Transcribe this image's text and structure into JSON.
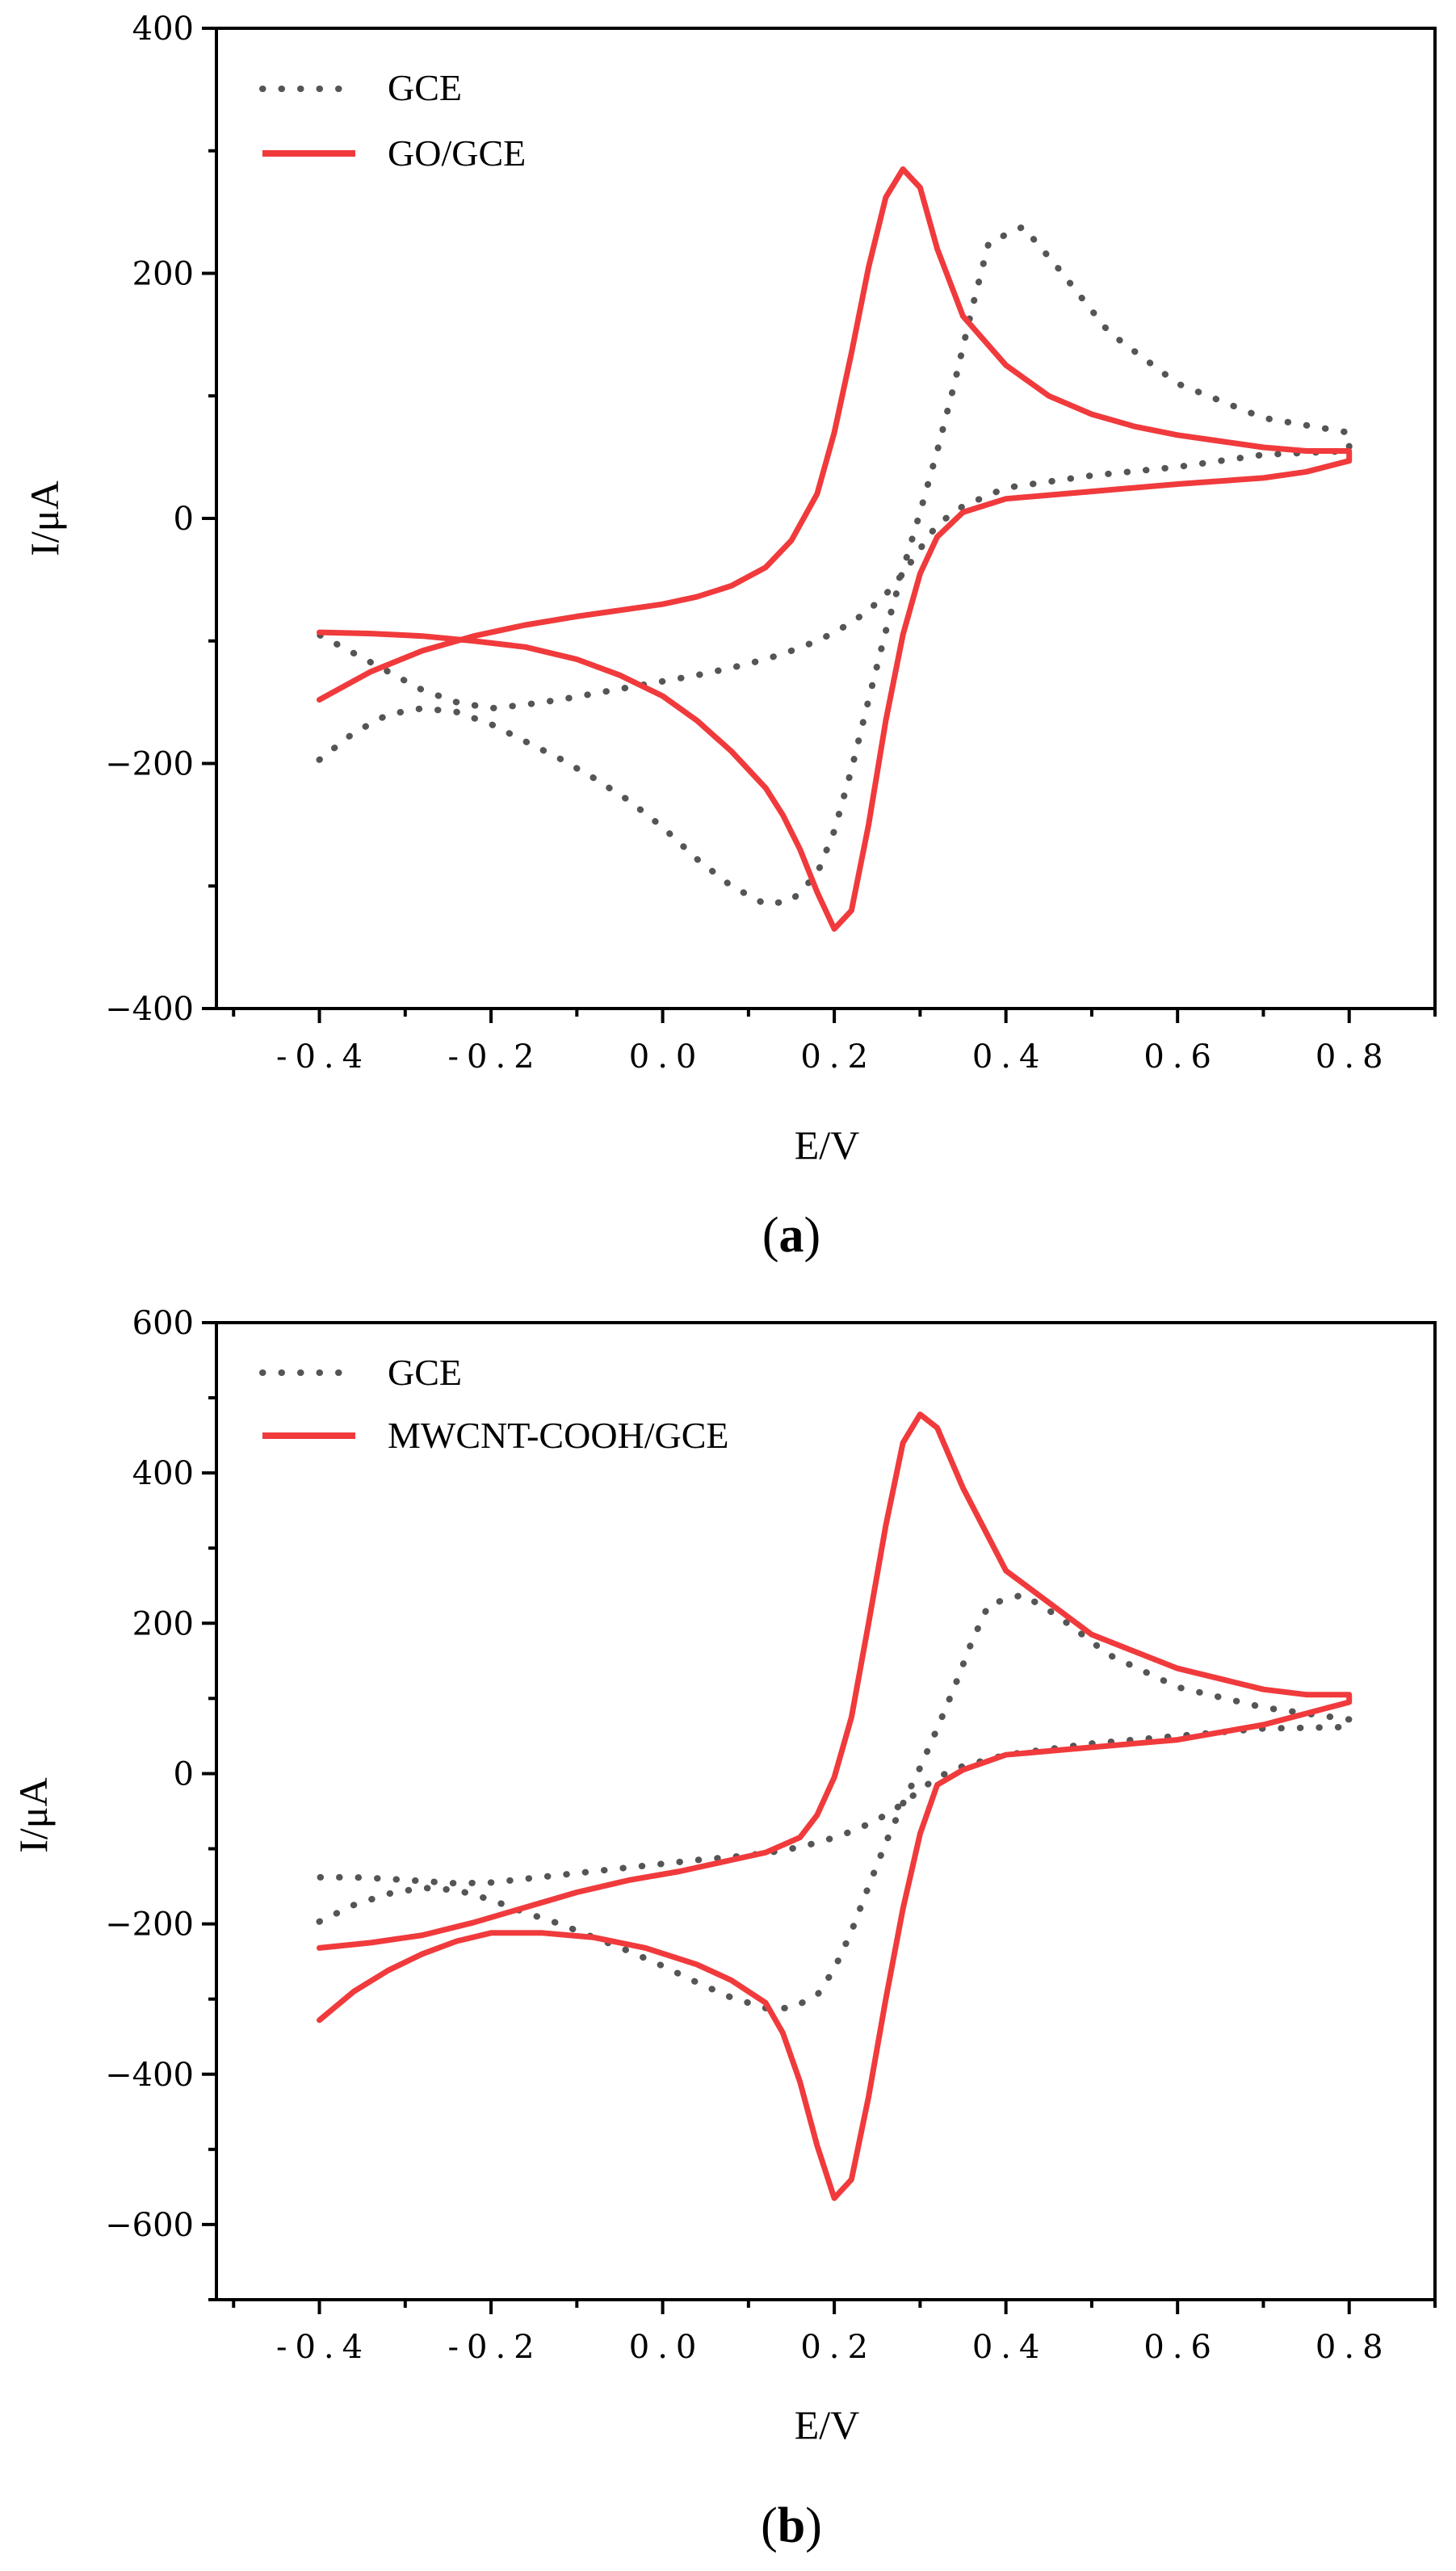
{
  "chart_data": [
    {
      "type": "line",
      "panel_label": "a",
      "title": "",
      "xlabel": "E/V",
      "ylabel": "I/μA",
      "xlim": [
        -0.52,
        0.9
      ],
      "ylim": [
        -400,
        400
      ],
      "xticks": [
        -0.4,
        -0.2,
        0.0,
        0.2,
        0.4,
        0.6,
        0.8
      ],
      "xtick_labels": [
        "-0.4",
        "-0.2",
        "0.0",
        "0.2",
        "0.4",
        "0.6",
        "0.8"
      ],
      "yticks": [
        -400,
        -200,
        0,
        200,
        400
      ],
      "ytick_labels": [
        "−400",
        "−200",
        "0",
        "200",
        "400"
      ],
      "legend_position": "top-left",
      "series": [
        {
          "name": "GCE",
          "color": "#555555",
          "style": "dotted",
          "x": [
            -0.4,
            -0.36,
            -0.32,
            -0.28,
            -0.24,
            -0.2,
            -0.16,
            -0.12,
            -0.08,
            -0.04,
            0.0,
            0.04,
            0.08,
            0.12,
            0.15,
            0.18,
            0.2,
            0.22,
            0.24,
            0.26,
            0.28,
            0.3,
            0.32,
            0.34,
            0.36,
            0.38,
            0.42,
            0.46,
            0.52,
            0.6,
            0.7,
            0.8,
            0.8,
            0.7,
            0.6,
            0.5,
            0.4,
            0.35,
            0.32,
            0.3,
            0.28,
            0.26,
            0.24,
            0.22,
            0.2,
            0.18,
            0.15,
            0.12,
            0.08,
            0.04,
            0.0,
            -0.04,
            -0.08,
            -0.12,
            -0.16,
            -0.2,
            -0.24,
            -0.28,
            -0.32,
            -0.36,
            -0.4
          ],
          "y": [
            -197,
            -175,
            -160,
            -155,
            -158,
            -168,
            -182,
            -196,
            -212,
            -230,
            -252,
            -278,
            -300,
            -315,
            -312,
            -290,
            -255,
            -205,
            -148,
            -92,
            -42,
            5,
            55,
            110,
            170,
            225,
            238,
            205,
            152,
            110,
            82,
            70,
            55,
            52,
            42,
            35,
            25,
            10,
            -5,
            -25,
            -45,
            -62,
            -75,
            -85,
            -93,
            -100,
            -108,
            -115,
            -122,
            -128,
            -133,
            -138,
            -143,
            -148,
            -152,
            -155,
            -150,
            -140,
            -125,
            -110,
            -95
          ]
        },
        {
          "name": "GO/GCE",
          "color": "#F03A3C",
          "style": "solid",
          "x": [
            -0.4,
            -0.34,
            -0.28,
            -0.22,
            -0.16,
            -0.1,
            -0.05,
            0.0,
            0.04,
            0.08,
            0.12,
            0.15,
            0.18,
            0.2,
            0.22,
            0.24,
            0.26,
            0.28,
            0.3,
            0.32,
            0.35,
            0.4,
            0.45,
            0.5,
            0.55,
            0.6,
            0.65,
            0.7,
            0.75,
            0.8,
            0.8,
            0.75,
            0.7,
            0.6,
            0.5,
            0.4,
            0.35,
            0.32,
            0.3,
            0.28,
            0.26,
            0.24,
            0.22,
            0.2,
            0.18,
            0.16,
            0.14,
            0.12,
            0.08,
            0.04,
            0.0,
            -0.05,
            -0.1,
            -0.16,
            -0.22,
            -0.28,
            -0.34,
            -0.4
          ],
          "y": [
            -148,
            -125,
            -108,
            -96,
            -87,
            -80,
            -75,
            -70,
            -64,
            -55,
            -40,
            -18,
            20,
            70,
            135,
            205,
            262,
            285,
            270,
            220,
            165,
            125,
            100,
            85,
            75,
            68,
            63,
            58,
            55,
            55,
            47,
            38,
            33,
            28,
            22,
            16,
            5,
            -15,
            -45,
            -95,
            -165,
            -250,
            -320,
            -335,
            -305,
            -270,
            -242,
            -220,
            -190,
            -165,
            -145,
            -128,
            -115,
            -105,
            -100,
            -96,
            -94,
            -93
          ]
        }
      ]
    },
    {
      "type": "line",
      "panel_label": "b",
      "title": "",
      "xlabel": "E/V",
      "ylabel": "I/μA",
      "xlim": [
        -0.52,
        0.9
      ],
      "ylim": [
        -700,
        600
      ],
      "xticks": [
        -0.4,
        -0.2,
        0.0,
        0.2,
        0.4,
        0.6,
        0.8
      ],
      "xtick_labels": [
        "-0.4",
        "-0.2",
        "0.0",
        "0.2",
        "0.4",
        "0.6",
        "0.8"
      ],
      "yticks": [
        -600,
        -400,
        -200,
        0,
        200,
        400,
        600
      ],
      "ytick_labels": [
        "−600",
        "−400",
        "−200",
        "0",
        "200",
        "400",
        "600"
      ],
      "legend_position": "top-left",
      "series": [
        {
          "name": "GCE",
          "color": "#555555",
          "style": "dotted",
          "x": [
            -0.4,
            -0.36,
            -0.32,
            -0.28,
            -0.24,
            -0.2,
            -0.16,
            -0.12,
            -0.08,
            -0.04,
            0.0,
            0.04,
            0.08,
            0.12,
            0.15,
            0.18,
            0.2,
            0.22,
            0.24,
            0.26,
            0.28,
            0.3,
            0.32,
            0.34,
            0.36,
            0.38,
            0.42,
            0.46,
            0.52,
            0.6,
            0.7,
            0.8,
            0.8,
            0.7,
            0.6,
            0.5,
            0.4,
            0.35,
            0.32,
            0.3,
            0.28,
            0.26,
            0.24,
            0.22,
            0.2,
            0.18,
            0.15,
            0.12,
            0.08,
            0.04,
            0.0,
            -0.04,
            -0.08,
            -0.12,
            -0.16,
            -0.2,
            -0.24,
            -0.28,
            -0.32,
            -0.36,
            -0.4
          ],
          "y": [
            -197,
            -175,
            -160,
            -152,
            -155,
            -168,
            -185,
            -200,
            -218,
            -236,
            -256,
            -278,
            -298,
            -312,
            -312,
            -295,
            -260,
            -210,
            -150,
            -92,
            -40,
            8,
            60,
            115,
            175,
            225,
            238,
            210,
            158,
            115,
            88,
            72,
            62,
            60,
            50,
            40,
            25,
            10,
            -5,
            -22,
            -40,
            -55,
            -67,
            -77,
            -85,
            -92,
            -100,
            -106,
            -111,
            -115,
            -120,
            -125,
            -130,
            -135,
            -140,
            -145,
            -146,
            -143,
            -140,
            -138,
            -138
          ]
        },
        {
          "name": "MWCNT-COOH/GCE",
          "color": "#F03A3C",
          "style": "solid",
          "x": [
            -0.4,
            -0.36,
            -0.32,
            -0.28,
            -0.24,
            -0.2,
            -0.14,
            -0.08,
            -0.02,
            0.04,
            0.08,
            0.12,
            0.14,
            0.16,
            0.18,
            0.2,
            0.22,
            0.24,
            0.26,
            0.28,
            0.3,
            0.32,
            0.35,
            0.4,
            0.45,
            0.5,
            0.55,
            0.6,
            0.65,
            0.7,
            0.75,
            0.8,
            0.8,
            0.75,
            0.7,
            0.6,
            0.5,
            0.4,
            0.35,
            0.32,
            0.3,
            0.28,
            0.26,
            0.24,
            0.22,
            0.2,
            0.18,
            0.16,
            0.12,
            0.08,
            0.02,
            -0.04,
            -0.1,
            -0.16,
            -0.22,
            -0.28,
            -0.34,
            -0.4
          ],
          "y": [
            -328,
            -290,
            -262,
            -240,
            -223,
            -212,
            -212,
            -218,
            -232,
            -254,
            -275,
            -305,
            -345,
            -410,
            -495,
            -565,
            -540,
            -430,
            -300,
            -180,
            -80,
            -15,
            5,
            25,
            30,
            35,
            40,
            45,
            55,
            65,
            80,
            95,
            105,
            105,
            112,
            140,
            185,
            270,
            380,
            460,
            478,
            440,
            330,
            200,
            75,
            -5,
            -55,
            -85,
            -105,
            -115,
            -130,
            -142,
            -158,
            -178,
            -198,
            -215,
            -225,
            -232
          ]
        }
      ]
    }
  ]
}
